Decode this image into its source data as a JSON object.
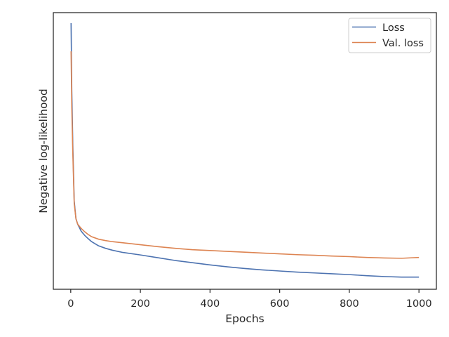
{
  "chart_data": {
    "type": "line",
    "title": "",
    "xlabel": "Epochs",
    "ylabel": "Negative log-likelihood",
    "xlim": [
      -50,
      1050
    ],
    "ylim": [
      0,
      1
    ],
    "xticks": [
      0,
      200,
      400,
      600,
      800,
      1000
    ],
    "xtick_labels": [
      "0",
      "200",
      "400",
      "600",
      "800",
      "1000"
    ],
    "yticks_visible": false,
    "grid": false,
    "legend_position": "top-right",
    "series": [
      {
        "name": "Loss",
        "color": "#4c72b0",
        "points": [
          [
            1,
            0.962
          ],
          [
            3,
            0.72
          ],
          [
            6,
            0.52
          ],
          [
            10,
            0.32
          ],
          [
            15,
            0.255
          ],
          [
            20,
            0.235
          ],
          [
            30,
            0.21
          ],
          [
            40,
            0.195
          ],
          [
            50,
            0.183
          ],
          [
            60,
            0.172
          ],
          [
            80,
            0.157
          ],
          [
            100,
            0.148
          ],
          [
            120,
            0.141
          ],
          [
            150,
            0.133
          ],
          [
            200,
            0.124
          ],
          [
            250,
            0.114
          ],
          [
            300,
            0.104
          ],
          [
            350,
            0.096
          ],
          [
            400,
            0.088
          ],
          [
            450,
            0.081
          ],
          [
            500,
            0.075
          ],
          [
            550,
            0.07
          ],
          [
            600,
            0.066
          ],
          [
            650,
            0.062
          ],
          [
            700,
            0.059
          ],
          [
            750,
            0.056
          ],
          [
            800,
            0.053
          ],
          [
            850,
            0.049
          ],
          [
            900,
            0.046
          ],
          [
            950,
            0.044
          ],
          [
            1000,
            0.044
          ]
        ]
      },
      {
        "name": "Val. loss",
        "color": "#dd8452",
        "points": [
          [
            1,
            0.86
          ],
          [
            3,
            0.66
          ],
          [
            6,
            0.49
          ],
          [
            10,
            0.31
          ],
          [
            15,
            0.255
          ],
          [
            20,
            0.235
          ],
          [
            30,
            0.22
          ],
          [
            40,
            0.208
          ],
          [
            50,
            0.198
          ],
          [
            60,
            0.19
          ],
          [
            80,
            0.181
          ],
          [
            100,
            0.176
          ],
          [
            120,
            0.172
          ],
          [
            150,
            0.168
          ],
          [
            200,
            0.161
          ],
          [
            250,
            0.154
          ],
          [
            300,
            0.148
          ],
          [
            350,
            0.143
          ],
          [
            400,
            0.14
          ],
          [
            450,
            0.137
          ],
          [
            500,
            0.134
          ],
          [
            550,
            0.131
          ],
          [
            600,
            0.128
          ],
          [
            650,
            0.125
          ],
          [
            700,
            0.123
          ],
          [
            750,
            0.12
          ],
          [
            800,
            0.118
          ],
          [
            850,
            0.115
          ],
          [
            900,
            0.113
          ],
          [
            950,
            0.112
          ],
          [
            1000,
            0.115
          ]
        ]
      }
    ]
  }
}
